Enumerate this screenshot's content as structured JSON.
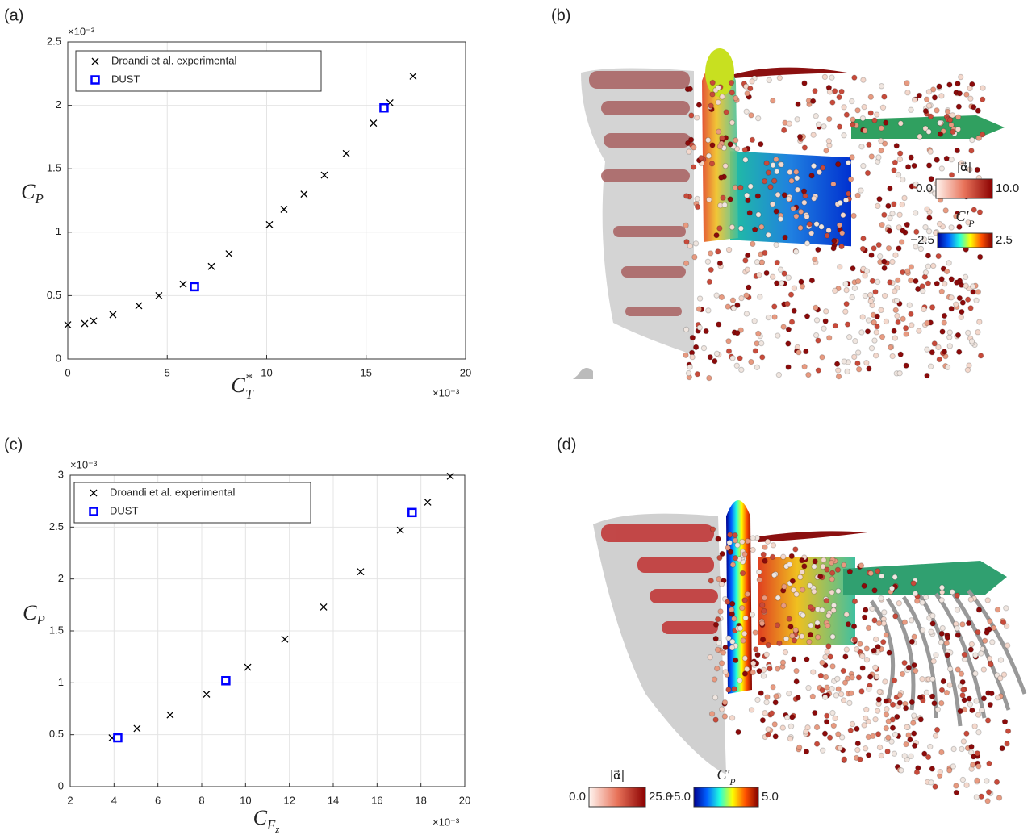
{
  "panel_labels": [
    "(a)",
    "(b)",
    "(c)",
    "(d)"
  ],
  "chart_data": [
    {
      "type": "scatter",
      "xlabel": {
        "text": "C",
        "sub": "T",
        "sup": "*"
      },
      "ylabel": {
        "text": "C",
        "sub": "P"
      },
      "x_multiplier": "×10⁻³",
      "y_multiplier": "×10⁻³",
      "xlim": [
        0,
        20
      ],
      "ylim": [
        0,
        2.5
      ],
      "xticks": [
        0,
        5,
        10,
        15,
        20
      ],
      "yticks": [
        0,
        0.5,
        1,
        1.5,
        2,
        2.5
      ],
      "grid": true,
      "legend": "upper left",
      "series": [
        {
          "name": "Droandi et al. experimental",
          "color": "#000000",
          "marker": "x",
          "x": [
            0,
            0.85,
            1.3,
            2.27,
            3.57,
            4.58,
            5.8,
            7.22,
            8.11,
            10.14,
            10.87,
            11.88,
            12.9,
            14.0,
            15.37,
            16.2,
            17.36
          ],
          "values": [
            0.27,
            0.28,
            0.3,
            0.35,
            0.42,
            0.5,
            0.59,
            0.73,
            0.83,
            1.06,
            1.18,
            1.3,
            1.45,
            1.62,
            1.86,
            2.02,
            2.23
          ]
        },
        {
          "name": "DUST",
          "color": "#0000ff",
          "marker": "square",
          "x": [
            6.37,
            15.9
          ],
          "values": [
            0.57,
            1.98
          ]
        }
      ]
    },
    {
      "type": "scatter",
      "xlabel": {
        "text": "C",
        "sub": "F",
        "subsub": "z"
      },
      "ylabel": {
        "text": "C",
        "sub": "P"
      },
      "x_multiplier": "×10⁻³",
      "y_multiplier": "×10⁻³",
      "xlim": [
        2,
        20
      ],
      "ylim": [
        0,
        3
      ],
      "xticks": [
        2,
        4,
        6,
        8,
        10,
        12,
        14,
        16,
        18,
        20
      ],
      "yticks": [
        0,
        0.5,
        1,
        1.5,
        2,
        2.5,
        3
      ],
      "grid": true,
      "legend": "upper left",
      "series": [
        {
          "name": "Droandi et al. experimental",
          "color": "#000000",
          "marker": "x",
          "x": [
            3.91,
            5.05,
            6.56,
            8.22,
            10.1,
            11.79,
            13.56,
            15.25,
            17.06,
            18.31,
            19.34
          ],
          "values": [
            0.47,
            0.56,
            0.69,
            0.89,
            1.15,
            1.42,
            1.73,
            2.07,
            2.47,
            2.74,
            2.99
          ]
        },
        {
          "name": "DUST",
          "color": "#0000ff",
          "marker": "square",
          "x": [
            4.17,
            9.1,
            17.6
          ],
          "values": [
            0.47,
            1.02,
            2.64
          ]
        }
      ]
    }
  ],
  "renders": [
    {
      "colorbars": [
        {
          "label": "|α⃗|",
          "min": "0.0",
          "max": "10.0"
        },
        {
          "label": {
            "text": "C",
            "prime": "′",
            "sub": "P"
          },
          "min": "−2.5",
          "max": "2.5"
        }
      ]
    },
    {
      "colorbars": [
        {
          "label": "|α⃗|",
          "min": "0.0",
          "max": "25.0"
        },
        {
          "label": {
            "text": "C",
            "prime": "′",
            "sub": "P"
          },
          "min": "−5.0",
          "max": "5.0"
        }
      ]
    }
  ]
}
